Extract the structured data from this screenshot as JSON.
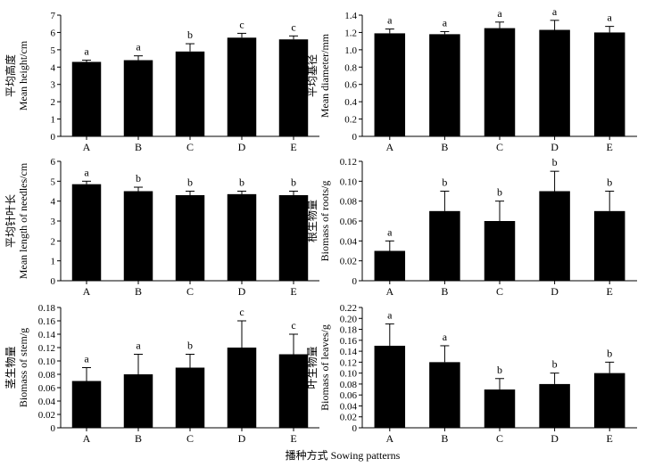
{
  "figure": {
    "xlabel": "播种方式 Sowing patterns"
  },
  "chart_data": [
    {
      "type": "bar",
      "ylabel_cn": "平均高度",
      "ylabel_en": "Mean height/cm",
      "categories": [
        "A",
        "B",
        "C",
        "D",
        "E"
      ],
      "values": [
        4.3,
        4.4,
        4.9,
        5.7,
        5.6
      ],
      "errors": [
        0.1,
        0.25,
        0.45,
        0.25,
        0.2
      ],
      "letters": [
        "a",
        "a",
        "b",
        "c",
        "c"
      ],
      "ylim": [
        0,
        7
      ],
      "ticks": [
        "0",
        "1",
        "2",
        "3",
        "4",
        "5",
        "6",
        "7"
      ]
    },
    {
      "type": "bar",
      "ylabel_cn": "平均基径",
      "ylabel_en": "Mean diameter/mm",
      "categories": [
        "A",
        "B",
        "C",
        "D",
        "E"
      ],
      "values": [
        1.19,
        1.18,
        1.25,
        1.23,
        1.2
      ],
      "errors": [
        0.05,
        0.03,
        0.07,
        0.11,
        0.07
      ],
      "letters": [
        "a",
        "a",
        "a",
        "a",
        "a"
      ],
      "ylim": [
        0,
        1.4
      ],
      "ticks": [
        "0",
        "0.2",
        "0.4",
        "0.6",
        "0.8",
        "1.0",
        "1.2",
        "1.4"
      ]
    },
    {
      "type": "bar",
      "ylabel_cn": "平均针叶长",
      "ylabel_en": "Mean length of needles/cm",
      "categories": [
        "A",
        "B",
        "C",
        "D",
        "E"
      ],
      "values": [
        4.85,
        4.5,
        4.3,
        4.35,
        4.3
      ],
      "errors": [
        0.15,
        0.2,
        0.2,
        0.15,
        0.2
      ],
      "letters": [
        "a",
        "b",
        "b",
        "b",
        "b"
      ],
      "ylim": [
        0,
        6
      ],
      "ticks": [
        "0",
        "1",
        "2",
        "3",
        "4",
        "5",
        "6"
      ]
    },
    {
      "type": "bar",
      "ylabel_cn": "根生物量",
      "ylabel_en": "Biomass of roots/g",
      "categories": [
        "A",
        "B",
        "C",
        "D",
        "E"
      ],
      "values": [
        0.03,
        0.07,
        0.06,
        0.09,
        0.07
      ],
      "errors": [
        0.01,
        0.02,
        0.02,
        0.02,
        0.02
      ],
      "letters": [
        "a",
        "b",
        "b",
        "b",
        "b"
      ],
      "ylim": [
        0,
        0.12
      ],
      "ticks": [
        "0",
        "0.02",
        "0.04",
        "0.06",
        "0.08",
        "0.10",
        "0.12"
      ]
    },
    {
      "type": "bar",
      "ylabel_cn": "茎生物量",
      "ylabel_en": "Biomass of stem/g",
      "categories": [
        "A",
        "B",
        "C",
        "D",
        "E"
      ],
      "values": [
        0.07,
        0.08,
        0.09,
        0.12,
        0.11
      ],
      "errors": [
        0.02,
        0.03,
        0.02,
        0.04,
        0.03
      ],
      "letters": [
        "a",
        "a",
        "b",
        "c",
        "c"
      ],
      "ylim": [
        0,
        0.18
      ],
      "ticks": [
        "0",
        "0.02",
        "0.04",
        "0.06",
        "0.08",
        "0.10",
        "0.12",
        "0.14",
        "0.16",
        "0.18"
      ]
    },
    {
      "type": "bar",
      "ylabel_cn": "叶生物量",
      "ylabel_en": "Biomass of leaves/g",
      "categories": [
        "A",
        "B",
        "C",
        "D",
        "E"
      ],
      "values": [
        0.15,
        0.12,
        0.07,
        0.08,
        0.1
      ],
      "errors": [
        0.04,
        0.03,
        0.02,
        0.02,
        0.02
      ],
      "letters": [
        "a",
        "a",
        "b",
        "b",
        "b"
      ],
      "ylim": [
        0,
        0.22
      ],
      "ticks": [
        "0",
        "0.02",
        "0.04",
        "0.06",
        "0.08",
        "0.10",
        "0.12",
        "0.14",
        "0.16",
        "0.18",
        "0.20",
        "0.22"
      ]
    }
  ]
}
